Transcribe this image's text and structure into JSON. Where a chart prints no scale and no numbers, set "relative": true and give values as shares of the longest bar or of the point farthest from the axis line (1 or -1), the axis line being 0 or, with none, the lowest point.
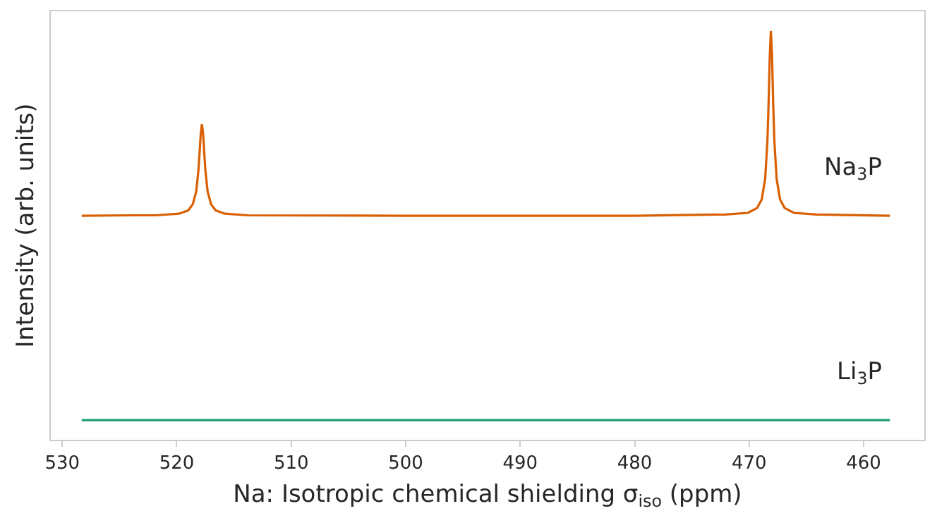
{
  "chart_data": {
    "type": "line",
    "relative": true,
    "xlabel": "Na: Isotropic chemical shielding σ$_{iso}$ (ppm)",
    "ylabel": "Intensity (arb. units)",
    "xlim": [
      531,
      454.7
    ],
    "xticks": [
      530,
      520,
      510,
      500,
      490,
      480,
      470,
      460
    ],
    "tick_labels": "x",
    "series": [
      {
        "name": "Na$_{3}$P",
        "color": "#d95f02",
        "x": [
          528.3,
          524,
          521.8,
          519.8,
          519.0,
          518.6,
          518.3,
          518.1,
          518.0,
          517.9,
          517.8,
          517.7,
          517.6,
          517.5,
          517.3,
          517.0,
          516.6,
          515.8,
          513.8,
          500,
          480,
          472.1,
          470.1,
          469.3,
          468.9,
          468.6,
          468.4,
          468.3,
          468.2,
          468.1,
          468.0,
          467.9,
          467.8,
          467.6,
          467.3,
          466.9,
          466.1,
          464.1,
          457.7
        ],
        "values": [
          0.548,
          0.549,
          0.549,
          0.553,
          0.561,
          0.576,
          0.607,
          0.66,
          0.704,
          0.75,
          0.772,
          0.75,
          0.704,
          0.66,
          0.607,
          0.576,
          0.561,
          0.553,
          0.549,
          0.548,
          0.548,
          0.551,
          0.555,
          0.567,
          0.588,
          0.638,
          0.733,
          0.824,
          0.938,
          1,
          0.938,
          0.824,
          0.733,
          0.638,
          0.588,
          0.567,
          0.555,
          0.551,
          0.548
        ]
      },
      {
        "name": "Li$_{3}$P",
        "color": "#1b9e77",
        "x": [
          528.3,
          457.7
        ],
        "values": [
          0.048,
          0.048
        ]
      }
    ]
  }
}
